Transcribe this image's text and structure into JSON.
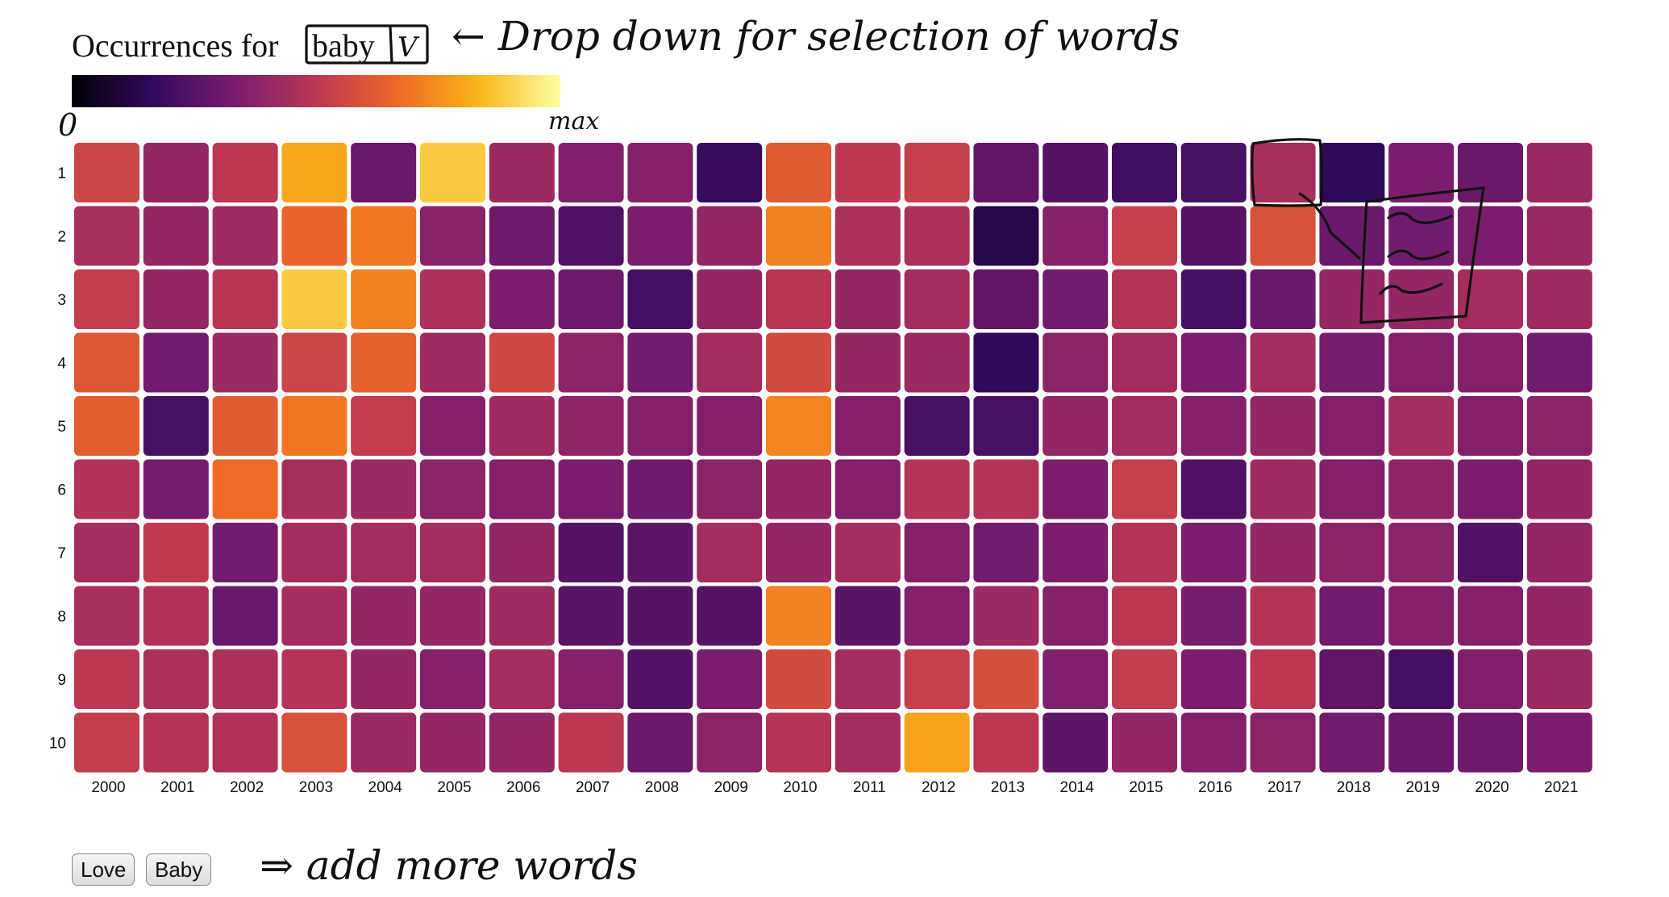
{
  "header": {
    "title_prefix": "Occurrences for",
    "selected_word": "baby",
    "dropdown_glyph": "V"
  },
  "legend": {
    "min_label": "0",
    "max_label": "max",
    "colormap": [
      "#000004",
      "#320a5e",
      "#781c6d",
      "#bc3754",
      "#ed6925",
      "#fbb61a",
      "#fcffa4"
    ]
  },
  "annotations": {
    "dropdown_note": "← Drop down for selection of words",
    "add_words_note": "⇒ add more words"
  },
  "word_buttons": [
    "Love",
    "Baby"
  ],
  "chart_data": {
    "type": "heatmap",
    "x": [
      "2000",
      "2001",
      "2002",
      "2003",
      "2004",
      "2005",
      "2006",
      "2007",
      "2008",
      "2009",
      "2010",
      "2011",
      "2012",
      "2013",
      "2014",
      "2015",
      "2016",
      "2017",
      "2018",
      "2019",
      "2020",
      "2021"
    ],
    "y": [
      "1",
      "2",
      "3",
      "4",
      "5",
      "6",
      "7",
      "8",
      "9",
      "10"
    ],
    "color_scale": "inferno",
    "value_range": [
      0,
      1
    ],
    "values": [
      [
        0.55,
        0.4,
        0.5,
        0.8,
        0.3,
        0.88,
        0.42,
        0.35,
        0.36,
        0.18,
        0.62,
        0.5,
        0.53,
        0.28,
        0.25,
        0.2,
        0.22,
        0.45,
        0.16,
        0.34,
        0.3,
        0.42
      ],
      [
        0.45,
        0.4,
        0.43,
        0.65,
        0.7,
        0.37,
        0.31,
        0.24,
        0.34,
        0.4,
        0.72,
        0.46,
        0.46,
        0.13,
        0.36,
        0.53,
        0.25,
        0.59,
        0.3,
        0.32,
        0.34,
        0.42
      ],
      [
        0.52,
        0.4,
        0.49,
        0.88,
        0.72,
        0.46,
        0.34,
        0.31,
        0.21,
        0.4,
        0.49,
        0.4,
        0.44,
        0.28,
        0.32,
        0.48,
        0.21,
        0.3,
        0.4,
        0.4,
        0.44,
        0.43
      ],
      [
        0.61,
        0.32,
        0.42,
        0.55,
        0.64,
        0.43,
        0.56,
        0.38,
        0.32,
        0.44,
        0.57,
        0.4,
        0.42,
        0.16,
        0.38,
        0.44,
        0.34,
        0.44,
        0.33,
        0.36,
        0.36,
        0.32
      ],
      [
        0.63,
        0.22,
        0.62,
        0.7,
        0.52,
        0.36,
        0.43,
        0.39,
        0.36,
        0.36,
        0.73,
        0.36,
        0.22,
        0.22,
        0.4,
        0.44,
        0.36,
        0.4,
        0.36,
        0.44,
        0.36,
        0.38
      ],
      [
        0.47,
        0.33,
        0.67,
        0.45,
        0.42,
        0.38,
        0.36,
        0.34,
        0.31,
        0.38,
        0.4,
        0.36,
        0.48,
        0.48,
        0.34,
        0.53,
        0.24,
        0.43,
        0.36,
        0.39,
        0.34,
        0.4
      ],
      [
        0.44,
        0.51,
        0.32,
        0.44,
        0.44,
        0.44,
        0.4,
        0.25,
        0.27,
        0.44,
        0.4,
        0.44,
        0.36,
        0.32,
        0.34,
        0.48,
        0.34,
        0.4,
        0.38,
        0.38,
        0.24,
        0.4
      ],
      [
        0.45,
        0.47,
        0.3,
        0.44,
        0.4,
        0.4,
        0.43,
        0.26,
        0.25,
        0.25,
        0.72,
        0.26,
        0.36,
        0.42,
        0.36,
        0.5,
        0.33,
        0.48,
        0.32,
        0.36,
        0.36,
        0.4
      ],
      [
        0.5,
        0.46,
        0.46,
        0.48,
        0.4,
        0.36,
        0.44,
        0.36,
        0.24,
        0.34,
        0.57,
        0.44,
        0.53,
        0.58,
        0.35,
        0.52,
        0.34,
        0.5,
        0.28,
        0.21,
        0.35,
        0.42
      ],
      [
        0.52,
        0.48,
        0.47,
        0.59,
        0.42,
        0.4,
        0.4,
        0.5,
        0.3,
        0.38,
        0.48,
        0.44,
        0.79,
        0.5,
        0.27,
        0.4,
        0.36,
        0.38,
        0.32,
        0.3,
        0.31,
        0.34
      ]
    ]
  }
}
